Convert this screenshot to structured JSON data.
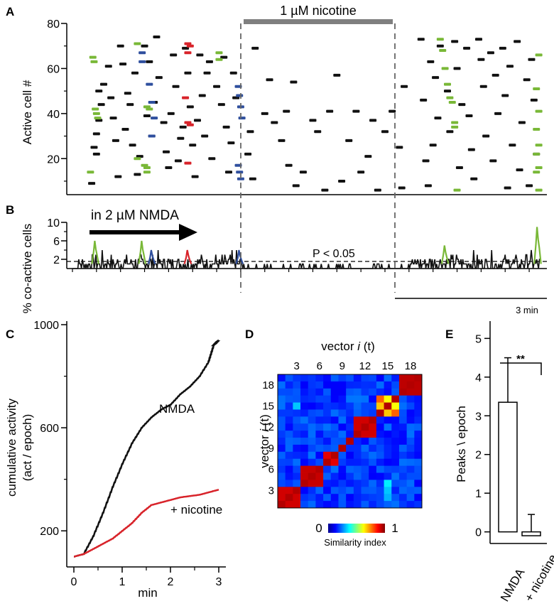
{
  "panel_letters": {
    "a": "A",
    "b": "B",
    "c": "C",
    "d": "D",
    "e": "E"
  },
  "chart_data": [
    {
      "panel": "A",
      "type": "scatter",
      "title": "1 µM nicotine",
      "xlabel": "",
      "ylabel": "Active cell #",
      "ylim": [
        4,
        80
      ],
      "yticks": [
        "20",
        "40",
        "60",
        "80"
      ],
      "xlim": [
        0,
        19.5
      ],
      "treatment_window_min": [
        7.05,
        13.95
      ],
      "colors": {
        "black": "#111111",
        "green": "#79b837",
        "blue": "#2f4f9e",
        "red": "#d8232a",
        "bar": "#7f7f7f",
        "dash": "#666666"
      },
      "events_black": [
        [
          0.8,
          9
        ],
        [
          0.9,
          25
        ],
        [
          1.0,
          31
        ],
        [
          1.1,
          37
        ],
        [
          1.2,
          44
        ],
        [
          1.1,
          50
        ],
        [
          1.3,
          53
        ],
        [
          1.0,
          22
        ],
        [
          1.5,
          61
        ],
        [
          1.6,
          47
        ],
        [
          1.7,
          38
        ],
        [
          1.8,
          28
        ],
        [
          2.0,
          70
        ],
        [
          1.9,
          12
        ],
        [
          2.1,
          62
        ],
        [
          2.3,
          49
        ],
        [
          2.2,
          33
        ],
        [
          2.4,
          44
        ],
        [
          2.6,
          58
        ],
        [
          2.5,
          26
        ],
        [
          2.8,
          21
        ],
        [
          2.7,
          13
        ],
        [
          3.0,
          70
        ],
        [
          3.2,
          63
        ],
        [
          3.1,
          39
        ],
        [
          3.3,
          30
        ],
        [
          3.5,
          74
        ],
        [
          3.6,
          56
        ],
        [
          3.4,
          45
        ],
        [
          3.8,
          36
        ],
        [
          3.9,
          23
        ],
        [
          4.0,
          16
        ],
        [
          4.2,
          66
        ],
        [
          4.3,
          52
        ],
        [
          4.1,
          40
        ],
        [
          4.5,
          29
        ],
        [
          4.4,
          19
        ],
        [
          4.7,
          69
        ],
        [
          4.8,
          58
        ],
        [
          4.9,
          43
        ],
        [
          4.6,
          34
        ],
        [
          5.0,
          26
        ],
        [
          5.1,
          12
        ],
        [
          5.3,
          66
        ],
        [
          5.4,
          48
        ],
        [
          5.2,
          37
        ],
        [
          5.6,
          58
        ],
        [
          5.5,
          30
        ],
        [
          5.8,
          20
        ],
        [
          5.7,
          63
        ],
        [
          6.0,
          52
        ],
        [
          6.2,
          44
        ],
        [
          6.4,
          34
        ],
        [
          6.3,
          65
        ],
        [
          6.6,
          27
        ],
        [
          6.5,
          14
        ],
        [
          6.7,
          58
        ],
        [
          6.8,
          47
        ],
        [
          7.3,
          22
        ],
        [
          7.6,
          69
        ],
        [
          7.5,
          11
        ],
        [
          7.4,
          32
        ],
        [
          8.0,
          40
        ],
        [
          8.2,
          55
        ],
        [
          8.4,
          36
        ],
        [
          8.7,
          28
        ],
        [
          8.9,
          41
        ],
        [
          9.2,
          54
        ],
        [
          9.0,
          17
        ],
        [
          9.3,
          8
        ],
        [
          9.6,
          14
        ],
        [
          10.0,
          37
        ],
        [
          10.2,
          32
        ],
        [
          10.5,
          6
        ],
        [
          10.7,
          41
        ],
        [
          11.0,
          57
        ],
        [
          11.2,
          10
        ],
        [
          11.5,
          28
        ],
        [
          11.8,
          41
        ],
        [
          12.0,
          14
        ],
        [
          12.3,
          21
        ],
        [
          12.5,
          37
        ],
        [
          12.7,
          6
        ],
        [
          13.0,
          32
        ],
        [
          13.3,
          41
        ],
        [
          13.6,
          25
        ],
        [
          13.7,
          7
        ],
        [
          13.8,
          52
        ],
        [
          14.5,
          73
        ],
        [
          14.6,
          46
        ],
        [
          14.7,
          19
        ],
        [
          14.8,
          8
        ],
        [
          14.9,
          63
        ],
        [
          15.1,
          56
        ],
        [
          15.3,
          70
        ],
        [
          15.0,
          26
        ],
        [
          15.2,
          38
        ],
        [
          15.6,
          50
        ],
        [
          15.7,
          32
        ],
        [
          15.9,
          72
        ],
        [
          16.0,
          60
        ],
        [
          16.2,
          44
        ],
        [
          16.1,
          16
        ],
        [
          16.4,
          69
        ],
        [
          16.5,
          39
        ],
        [
          16.6,
          24
        ],
        [
          16.7,
          11
        ],
        [
          16.9,
          73
        ],
        [
          17.0,
          64
        ],
        [
          17.1,
          52
        ],
        [
          17.2,
          30
        ],
        [
          17.4,
          67
        ],
        [
          17.6,
          57
        ],
        [
          17.5,
          19
        ],
        [
          17.7,
          40
        ],
        [
          17.9,
          69
        ],
        [
          18.0,
          48
        ],
        [
          18.1,
          7
        ],
        [
          18.3,
          26
        ],
        [
          18.2,
          61
        ],
        [
          18.5,
          72
        ],
        [
          18.7,
          36
        ],
        [
          18.6,
          15
        ],
        [
          18.9,
          55
        ],
        [
          19.0,
          8
        ],
        [
          19.1,
          64
        ],
        [
          19.2,
          46
        ],
        [
          19.3,
          22
        ]
      ],
      "events_green": [
        [
          0.75,
          14
        ],
        [
          0.85,
          65
        ],
        [
          0.9,
          63
        ],
        [
          0.95,
          42
        ],
        [
          1.0,
          40
        ],
        [
          1.05,
          38
        ],
        [
          2.7,
          71
        ],
        [
          2.7,
          20
        ],
        [
          3.1,
          43
        ],
        [
          3.2,
          42
        ],
        [
          3.0,
          17
        ],
        [
          3.1,
          14
        ],
        [
          3.1,
          16
        ],
        [
          6.1,
          67
        ],
        [
          6.1,
          64
        ],
        [
          15.3,
          73
        ],
        [
          15.4,
          68
        ],
        [
          15.5,
          60
        ],
        [
          15.6,
          53
        ],
        [
          15.7,
          47
        ],
        [
          15.8,
          45
        ],
        [
          15.9,
          36
        ],
        [
          15.9,
          34
        ],
        [
          16.0,
          6
        ],
        [
          19.4,
          66
        ],
        [
          19.3,
          51
        ],
        [
          19.4,
          41
        ],
        [
          19.3,
          33
        ],
        [
          19.4,
          26
        ],
        [
          19.3,
          22
        ],
        [
          19.4,
          16
        ],
        [
          19.3,
          14
        ],
        [
          19.4,
          6
        ]
      ],
      "events_blue": [
        [
          2.9,
          67
        ],
        [
          2.9,
          63
        ],
        [
          3.2,
          53
        ],
        [
          3.3,
          45
        ],
        [
          3.4,
          38
        ],
        [
          3.3,
          30
        ],
        [
          6.9,
          52
        ],
        [
          6.95,
          48
        ],
        [
          7.0,
          43
        ],
        [
          7.05,
          38
        ],
        [
          6.9,
          17
        ],
        [
          6.95,
          14
        ],
        [
          7.0,
          11
        ]
      ],
      "events_red": [
        [
          4.8,
          71
        ],
        [
          4.9,
          70
        ],
        [
          4.8,
          67
        ],
        [
          4.7,
          47
        ],
        [
          4.8,
          36
        ],
        [
          4.9,
          35
        ],
        [
          4.8,
          18
        ]
      ]
    },
    {
      "panel": "B",
      "type": "line",
      "ylabel": "% co-active cells",
      "ylim": [
        0,
        10
      ],
      "yticks": [
        "2",
        "6",
        "10"
      ],
      "annotation": "in 2 µM NMDA",
      "threshold": 4,
      "threshold_label": "P < 0.05",
      "scale_bar_label": "3 min",
      "series": [
        {
          "name": "co-active",
          "color": "#111111",
          "seed": 7
        },
        {
          "name": "green peaks",
          "color": "#79b837",
          "peaks": [
            [
              0.95,
              6
            ],
            [
              2.9,
              6
            ],
            [
              15.5,
              5
            ],
            [
              19.35,
              9
            ]
          ]
        },
        {
          "name": "blue peaks",
          "color": "#2f4f9e",
          "peaks": [
            [
              3.3,
              4
            ],
            [
              6.95,
              4
            ]
          ]
        },
        {
          "name": "red peaks",
          "color": "#d8232a",
          "peaks": [
            [
              4.8,
              4
            ]
          ]
        }
      ]
    },
    {
      "panel": "C",
      "type": "line",
      "xlabel": "min",
      "ylabel": "cumulative activity",
      "ylabel2": "(act / epoch)",
      "xlim": [
        0,
        3
      ],
      "ylim": [
        60,
        1000
      ],
      "xticks": [
        "0",
        "1",
        "2",
        "3"
      ],
      "yticks": [
        "200",
        "600",
        "1000"
      ],
      "series": [
        {
          "name": "NMDA",
          "color": "#111111",
          "x": [
            0,
            0.2,
            0.4,
            0.6,
            0.8,
            1.0,
            1.2,
            1.4,
            1.6,
            1.8,
            2.0,
            2.2,
            2.4,
            2.6,
            2.8,
            2.9,
            3.0
          ],
          "y": [
            100,
            110,
            180,
            270,
            370,
            460,
            540,
            600,
            640,
            670,
            690,
            730,
            760,
            800,
            860,
            920,
            940
          ]
        },
        {
          "name": "+ nicotine",
          "color": "#d8232a",
          "x": [
            0,
            0.2,
            0.4,
            0.6,
            0.8,
            1.0,
            1.2,
            1.4,
            1.6,
            1.8,
            2.0,
            2.2,
            2.4,
            2.6,
            2.8,
            3.0
          ],
          "y": [
            100,
            110,
            130,
            150,
            170,
            200,
            230,
            270,
            300,
            310,
            320,
            330,
            335,
            340,
            350,
            360
          ]
        }
      ]
    },
    {
      "panel": "D",
      "type": "heatmap",
      "xlabel": "vector i (t)",
      "ylabel": "vector i (t)",
      "ticks": [
        "3",
        "6",
        "9",
        "12",
        "15",
        "18"
      ],
      "n": 19,
      "colorbar_min": "0",
      "colorbar_max": "1",
      "colorbar_label": "Similarity index",
      "groups": [
        [
          0,
          1,
          2
        ],
        [
          3,
          4,
          5
        ],
        [
          6,
          7
        ],
        [
          8
        ],
        [
          9
        ],
        [
          10,
          11,
          12
        ],
        [
          13,
          14,
          15
        ],
        [
          16,
          17,
          18
        ]
      ],
      "within_group": {
        "0": 0.92,
        "1": 0.93,
        "2": 0.9,
        "3": 0.92,
        "4": 0.93,
        "5": 0.92,
        "6": 0.7,
        "7": 0.94
      }
    },
    {
      "panel": "E",
      "type": "bar",
      "ylabel": "Peaks \\ epoch",
      "categories": [
        "NMDA",
        "+ nicotine"
      ],
      "values": [
        3.35,
        -0.1
      ],
      "errors": [
        1.15,
        0.55
      ],
      "ylim": [
        -0.3,
        5.3
      ],
      "yticks": [
        "0",
        "1",
        "2",
        "3",
        "4",
        "5"
      ],
      "significance": "**"
    }
  ]
}
